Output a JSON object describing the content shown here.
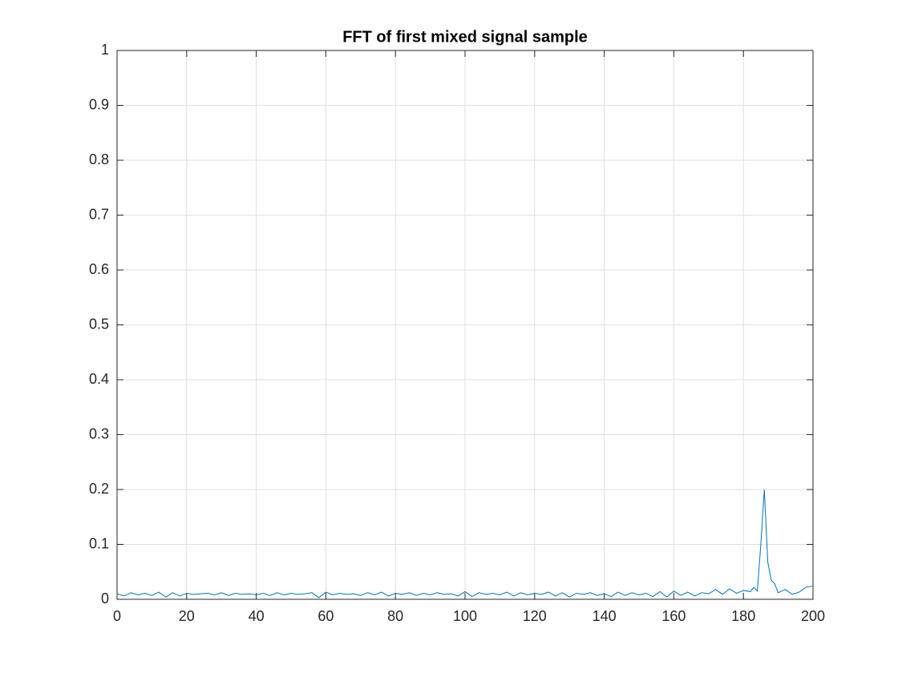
{
  "chart_data": {
    "type": "line",
    "title": "FFT of first mixed signal sample",
    "x": [
      0,
      2,
      4,
      6,
      8,
      10,
      12,
      14,
      16,
      18,
      20,
      22,
      24,
      26,
      28,
      30,
      32,
      34,
      36,
      38,
      40,
      42,
      44,
      46,
      48,
      50,
      52,
      54,
      56,
      58,
      60,
      62,
      64,
      66,
      68,
      70,
      72,
      74,
      76,
      78,
      80,
      82,
      84,
      86,
      88,
      90,
      92,
      94,
      96,
      98,
      100,
      102,
      104,
      106,
      108,
      110,
      112,
      114,
      116,
      118,
      120,
      122,
      124,
      126,
      128,
      130,
      132,
      134,
      136,
      138,
      140,
      142,
      144,
      146,
      148,
      150,
      152,
      154,
      156,
      158,
      160,
      162,
      164,
      166,
      168,
      170,
      172,
      174,
      176,
      178,
      180,
      182,
      183,
      184,
      185,
      186,
      187,
      188,
      189,
      190,
      192,
      194,
      196,
      198,
      200
    ],
    "series": [
      {
        "color": "#0072bd",
        "values": [
          0.01,
          0.006,
          0.012,
          0.008,
          0.011,
          0.007,
          0.013,
          0.004,
          0.012,
          0.006,
          0.011,
          0.009,
          0.01,
          0.011,
          0.008,
          0.012,
          0.007,
          0.011,
          0.009,
          0.01,
          0.008,
          0.011,
          0.007,
          0.012,
          0.008,
          0.011,
          0.009,
          0.01,
          0.012,
          0.003,
          0.013,
          0.008,
          0.011,
          0.009,
          0.01,
          0.007,
          0.012,
          0.008,
          0.013,
          0.006,
          0.011,
          0.009,
          0.012,
          0.007,
          0.011,
          0.008,
          0.012,
          0.009,
          0.01,
          0.006,
          0.014,
          0.005,
          0.012,
          0.009,
          0.011,
          0.008,
          0.013,
          0.006,
          0.012,
          0.008,
          0.011,
          0.009,
          0.013,
          0.006,
          0.012,
          0.004,
          0.011,
          0.009,
          0.012,
          0.007,
          0.01,
          0.005,
          0.013,
          0.007,
          0.012,
          0.008,
          0.011,
          0.005,
          0.014,
          0.004,
          0.015,
          0.007,
          0.013,
          0.006,
          0.012,
          0.01,
          0.018,
          0.009,
          0.019,
          0.011,
          0.016,
          0.014,
          0.022,
          0.015,
          0.1,
          0.2,
          0.068,
          0.035,
          0.028,
          0.012,
          0.018,
          0.009,
          0.013,
          0.022,
          0.024
        ]
      }
    ],
    "xlim": [
      0,
      200
    ],
    "xticks": [
      0,
      20,
      40,
      60,
      80,
      100,
      120,
      140,
      160,
      180,
      200
    ],
    "ylim": [
      0,
      1
    ],
    "yticks": [
      0,
      0.1,
      0.2,
      0.3,
      0.4,
      0.5,
      0.6,
      0.7,
      0.8,
      0.9,
      1
    ],
    "grid": true
  }
}
